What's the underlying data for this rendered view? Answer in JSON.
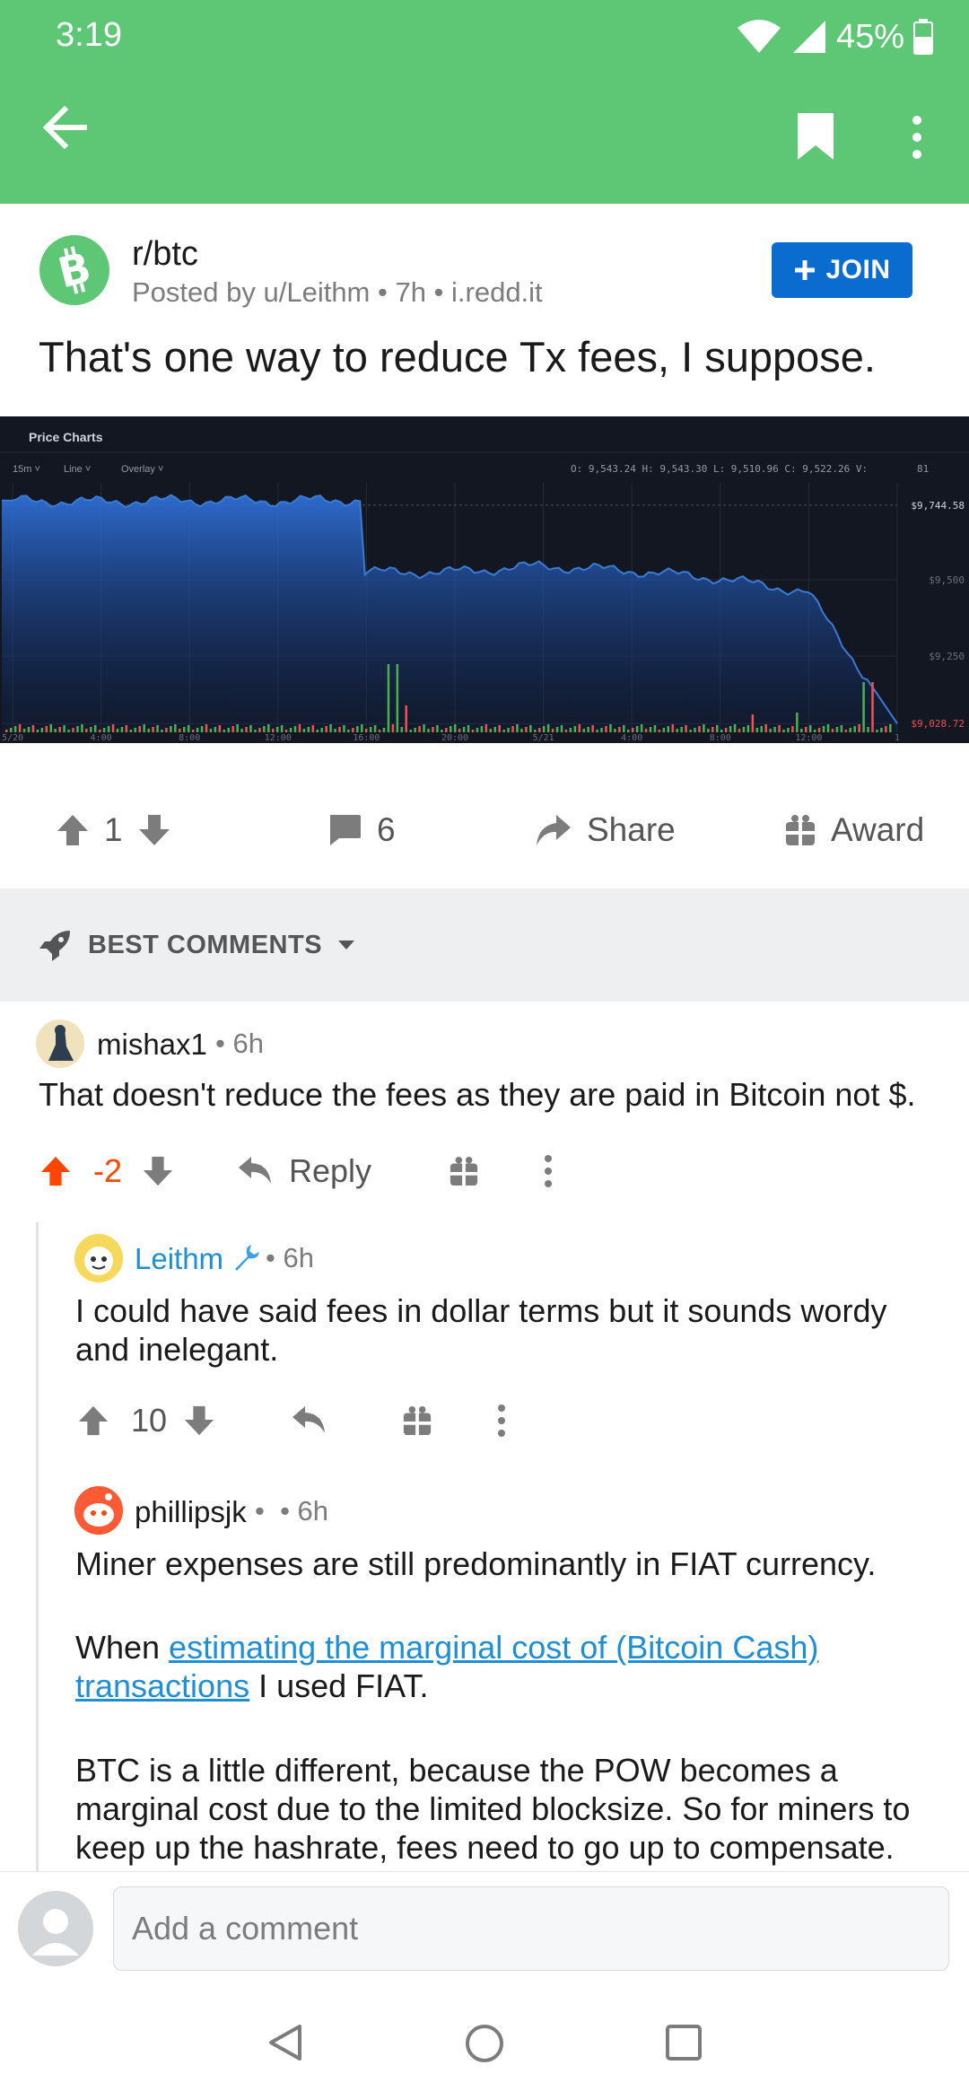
{
  "status": {
    "time": "3:19",
    "battery": "45%"
  },
  "post": {
    "subreddit": "r/btc",
    "meta": "Posted by u/Leithm • 7h • i.redd.it",
    "join_label": "JOIN",
    "title": "That's one way to reduce Tx fees, I suppose.",
    "upvotes": "1",
    "comments": "6",
    "share_label": "Share",
    "award_label": "Award"
  },
  "chart_image": {
    "title": "Price Charts",
    "controls": [
      "15m",
      "Line",
      "Overlay"
    ],
    "ohlc": "O: 9,543.24  H: 9,543.30  L: 9,510.96  C: 9,522.26  V:",
    "ohlc_volume": "81",
    "price_labels": [
      "$9,744.58",
      "$9,500",
      "$9,250",
      "$9,028.72"
    ],
    "time_labels": [
      "5/20",
      "4:00",
      "8:00",
      "12:00",
      "16:00",
      "20:00",
      "5/21",
      "4:00",
      "8:00",
      "12:00",
      "1"
    ],
    "colors": {
      "background": "#131722",
      "line": "#3a7bd5",
      "volume_up": "#4caf50",
      "volume_down": "#ef5350"
    }
  },
  "chart_data": {
    "type": "area",
    "title": "Price Charts",
    "x": [
      "5/20",
      "4:00",
      "8:00",
      "12:00",
      "16:00",
      "20:00",
      "5/21",
      "4:00",
      "8:00",
      "12:00",
      "13:00"
    ],
    "series": [
      {
        "values": [
          9760,
          9755,
          9760,
          9758,
          9762,
          9525,
          9545,
          9530,
          9505,
          9460,
          9028.72
        ]
      }
    ],
    "ylim": [
      9000,
      9800
    ]
  },
  "comments_header": {
    "sort_label": "BEST COMMENTS"
  },
  "comments": [
    {
      "user": "mishax1",
      "age": "• 6h",
      "body": "That doesn't reduce the fees as they are paid in Bitcoin not $.",
      "score": "-2",
      "reply_label": "Reply"
    },
    {
      "user": "Leithm",
      "age": "• 6h",
      "body": "I could have said fees in dollar terms but it sounds wordy and inelegant.",
      "score": "10"
    },
    {
      "user": "phillipsjk",
      "age": "•  • 6h",
      "body1": "Miner expenses are still predominantly in FIAT currency.",
      "body2_prefix": "When ",
      "body2_link": "estimating the marginal cost of (Bitcoin Cash) transactions",
      "body2_suffix": " I used FIAT.",
      "body3": "BTC is a little different, because the POW becomes a marginal cost due to the limited blocksize. So for miners to keep up the hashrate, fees need to go up to compensate."
    }
  ],
  "compose": {
    "placeholder": "Add a comment"
  },
  "accent_colors": {
    "header": "#5ec776",
    "join": "#0a6ccf",
    "downvoted": "#ff4500",
    "op": "#1d8fd6"
  }
}
